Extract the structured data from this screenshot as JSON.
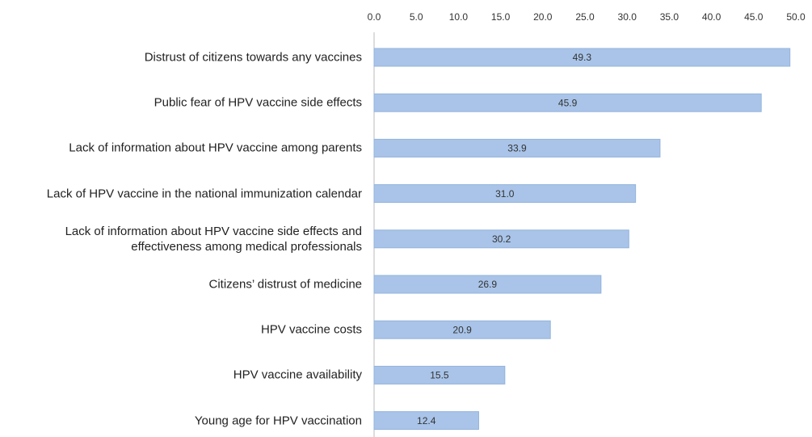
{
  "chart_data": {
    "type": "hbar",
    "categories": [
      "Distrust of citizens towards any vaccines",
      "Public fear of HPV vaccine side effects",
      "Lack of information about HPV vaccine among parents",
      "Lack of HPV vaccine in the national immunization calendar",
      "Lack of information about HPV vaccine side effects and\neffectiveness among medical professionals",
      "Citizens’ distrust of medicine",
      "HPV vaccine costs",
      "HPV vaccine availability",
      "Young age for HPV vaccination"
    ],
    "values": [
      49.3,
      45.9,
      33.9,
      31.0,
      30.2,
      26.9,
      20.9,
      15.5,
      12.4
    ],
    "value_labels": [
      "49.3",
      "45.9",
      "33.9",
      "31.0",
      "30.2",
      "26.9",
      "20.9",
      "15.5",
      "12.4"
    ],
    "color": "#a9c4e8",
    "xlim": [
      0,
      50
    ],
    "xticks": [
      {
        "value": 0,
        "label": "0.0"
      },
      {
        "value": 5,
        "label": "5.0"
      },
      {
        "value": 10,
        "label": "10.0"
      },
      {
        "value": 15,
        "label": "15.0"
      },
      {
        "value": 20,
        "label": "20.0"
      },
      {
        "value": 25,
        "label": "25.0"
      },
      {
        "value": 30,
        "label": "30.0"
      },
      {
        "value": 35,
        "label": "35.0"
      },
      {
        "value": 40,
        "label": "40.0"
      },
      {
        "value": 45,
        "label": "45.0"
      },
      {
        "value": 50,
        "label": "50.0"
      }
    ],
    "grid": false
  }
}
